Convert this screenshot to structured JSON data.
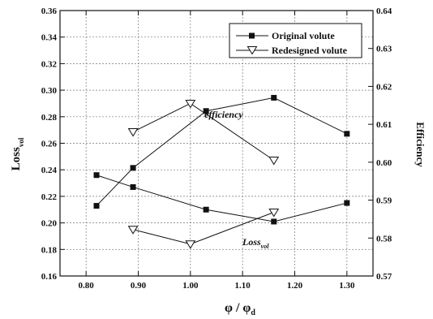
{
  "chart_data": {
    "type": "line",
    "x_label": "φ / φ",
    "x_label_subscript": "d",
    "y_left_label": "Loss",
    "y_left_label_subscript": "vol",
    "y_right_label": "Efficiency",
    "xlim": [
      0.75,
      1.35
    ],
    "ylim_left": [
      0.16,
      0.36
    ],
    "ylim_right": [
      0.57,
      0.64
    ],
    "x_ticks": [
      "0.80",
      "0.90",
      "1.00",
      "1.10",
      "1.20",
      "1.30"
    ],
    "y_left_ticks": [
      "0.16",
      "0.18",
      "0.20",
      "0.22",
      "0.24",
      "0.26",
      "0.28",
      "0.30",
      "0.32",
      "0.34",
      "0.36"
    ],
    "y_right_ticks": [
      "0.57",
      "0.58",
      "0.59",
      "0.60",
      "0.61",
      "0.62",
      "0.63",
      "0.64"
    ],
    "grid": true,
    "legend_position": "top-right",
    "legend": [
      "Original volute",
      "Redesigned volute"
    ],
    "annotations": [
      {
        "text": "efficiency"
      },
      {
        "text": "Loss",
        "subscript": "vol"
      }
    ],
    "series": [
      {
        "name": "Original volute",
        "metric": "efficiency",
        "axis": "right",
        "marker": "filled-square",
        "x": [
          0.82,
          0.89,
          1.03,
          1.16,
          1.3
        ],
        "y": [
          0.5885,
          0.5985,
          0.6135,
          0.617,
          0.6075
        ]
      },
      {
        "name": "Redesigned volute",
        "metric": "efficiency",
        "axis": "right",
        "marker": "open-triangle",
        "x": [
          0.89,
          1.0,
          1.16
        ],
        "y": [
          0.608,
          0.6155,
          0.6005
        ]
      },
      {
        "name": "Original volute",
        "metric": "loss",
        "axis": "left",
        "marker": "filled-square",
        "x": [
          0.82,
          0.89,
          1.03,
          1.16,
          1.3
        ],
        "y": [
          0.236,
          0.227,
          0.21,
          0.201,
          0.215
        ]
      },
      {
        "name": "Redesigned volute",
        "metric": "loss",
        "axis": "left",
        "marker": "open-triangle",
        "x": [
          0.89,
          1.0,
          1.16
        ],
        "y": [
          0.195,
          0.184,
          0.208
        ]
      }
    ]
  }
}
